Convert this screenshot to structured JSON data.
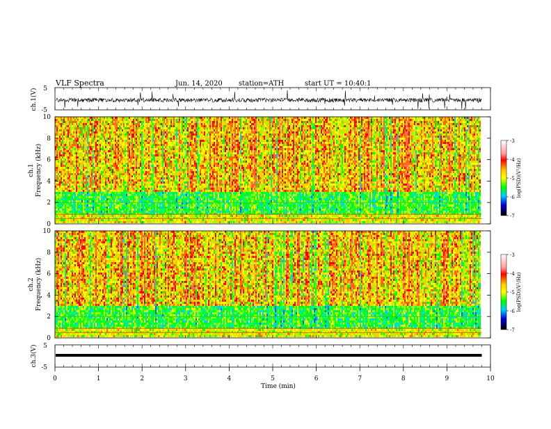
{
  "header": {
    "title": "VLF  Spectra",
    "date": "Jun. 14, 2020",
    "station": "station=ATH",
    "start": "start  UT  =    10:40:1"
  },
  "colorbar": {
    "label": "log(PSD)(V²/Hz)",
    "ticks": [
      "-3",
      "-4",
      "-5",
      "-6",
      "-7"
    ],
    "colors": [
      "#ffffff",
      "#ff0000",
      "#ffcc00",
      "#ffff00",
      "#00ff00",
      "#00ccff",
      "#0000cc",
      "#000000"
    ]
  },
  "chart_data": [
    {
      "type": "line",
      "panel": "ch1-waveform",
      "ylabel": "ch.1(V)",
      "ylim": [
        -5,
        5
      ],
      "yticks": [
        "5",
        "-5"
      ],
      "description_values": {
        "baseline": 0,
        "amplitude": 1.5
      }
    },
    {
      "type": "heatmap",
      "panel": "ch1-spectrogram",
      "ylabel_line1": "ch.1",
      "ylabel_line2": "Frequency  (kHz)",
      "ylim": [
        0,
        10
      ],
      "yticks": [
        "10",
        "8",
        "6",
        "4",
        "2",
        "0"
      ],
      "xlim": [
        0,
        10
      ],
      "zlim": [
        -7,
        -3
      ]
    },
    {
      "type": "heatmap",
      "panel": "ch2-spectrogram",
      "ylabel_line1": "ch.2",
      "ylabel_line2": "Frequency  (kHz)",
      "ylim": [
        0,
        10
      ],
      "yticks": [
        "10",
        "8",
        "6",
        "4",
        "2",
        "0"
      ],
      "xlim": [
        0,
        10
      ],
      "zlim": [
        -7,
        -3
      ]
    },
    {
      "type": "line",
      "panel": "ch3-waveform",
      "ylabel": "ch.3(V)",
      "ylim": [
        -5,
        5
      ],
      "yticks": [
        "5",
        "-5"
      ],
      "description_values": {
        "baseline": 0,
        "amplitude": 0.1
      }
    }
  ],
  "xaxis": {
    "label": "Time  (min)",
    "ticks": [
      "0",
      "1",
      "2",
      "3",
      "4",
      "5",
      "6",
      "7",
      "8",
      "9",
      "10"
    ],
    "data_end": 9.8
  }
}
